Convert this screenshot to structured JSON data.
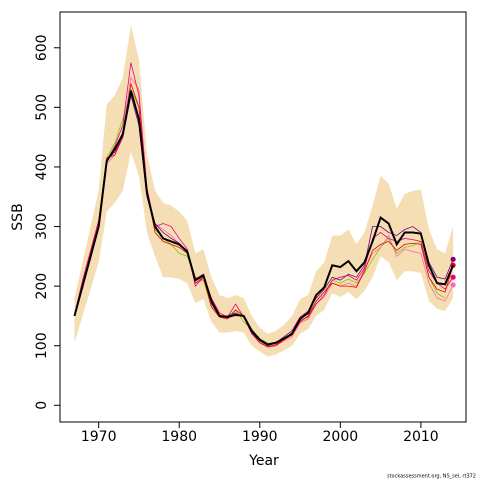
{
  "chart_data": {
    "type": "line",
    "x_label": "Year",
    "y_label": "SSB",
    "footnote": "stockassessment.org, NS_sel, rt372",
    "x": [
      1967,
      1968,
      1969,
      1970,
      1971,
      1972,
      1973,
      1974,
      1975,
      1976,
      1977,
      1978,
      1979,
      1980,
      1981,
      1982,
      1983,
      1984,
      1985,
      1986,
      1987,
      1988,
      1989,
      1990,
      1991,
      1992,
      1993,
      1994,
      1995,
      1996,
      1997,
      1998,
      1999,
      2000,
      2001,
      2002,
      2003,
      2004,
      2005,
      2006,
      2007,
      2008,
      2009,
      2010,
      2011,
      2012,
      2013,
      2014
    ],
    "xlim": [
      1965.2,
      2015.6
    ],
    "xticks": [
      1970,
      1980,
      1990,
      2000,
      2010
    ],
    "ylim": [
      -28,
      660
    ],
    "yticks": [
      0,
      100,
      200,
      300,
      400,
      500,
      600
    ],
    "band": {
      "color": "#f5deb3",
      "upper": [
        180,
        240,
        300,
        360,
        505,
        520,
        550,
        638,
        580,
        420,
        360,
        340,
        335,
        325,
        310,
        255,
        262,
        215,
        185,
        180,
        185,
        180,
        150,
        130,
        120,
        125,
        135,
        150,
        178,
        185,
        225,
        240,
        285,
        285,
        295,
        270,
        290,
        335,
        385,
        372,
        330,
        355,
        360,
        362,
        295,
        262,
        255,
        300
      ],
      "lower": [
        105,
        150,
        195,
        240,
        325,
        340,
        360,
        425,
        385,
        290,
        250,
        215,
        215,
        212,
        205,
        172,
        178,
        140,
        122,
        122,
        125,
        122,
        100,
        90,
        82,
        85,
        92,
        100,
        120,
        128,
        150,
        160,
        188,
        182,
        190,
        178,
        192,
        215,
        250,
        240,
        210,
        225,
        225,
        222,
        175,
        162,
        158,
        180
      ]
    },
    "series": [
      {
        "color": "#7ccd00",
        "values": [
          150,
          205,
          258,
          310,
          415,
          440,
          480,
          530,
          500,
          360,
          295,
          280,
          270,
          255,
          250,
          215,
          210,
          165,
          150,
          148,
          160,
          140,
          128,
          112,
          104,
          106,
          112,
          120,
          138,
          145,
          175,
          190,
          210,
          205,
          212,
          205,
          222,
          245,
          265,
          280,
          255,
          265,
          268,
          275,
          215,
          188,
          180,
          null
        ]
      },
      {
        "color": "#ff69b4",
        "values": [
          150,
          200,
          250,
          300,
          405,
          420,
          460,
          550,
          530,
          350,
          305,
          295,
          285,
          270,
          260,
          205,
          210,
          175,
          150,
          150,
          150,
          150,
          125,
          108,
          100,
          100,
          108,
          115,
          138,
          145,
          170,
          182,
          205,
          200,
          205,
          200,
          228,
          255,
          265,
          285,
          250,
          262,
          258,
          255,
          205,
          180,
          175,
          202
        ]
      },
      {
        "color": "#e6007e",
        "values": [
          152,
          210,
          260,
          310,
          410,
          435,
          470,
          575,
          520,
          365,
          300,
          305,
          300,
          280,
          262,
          200,
          215,
          180,
          155,
          148,
          170,
          148,
          120,
          105,
          98,
          102,
          110,
          122,
          142,
          148,
          170,
          185,
          210,
          215,
          218,
          210,
          230,
          280,
          290,
          280,
          275,
          280,
          278,
          275,
          225,
          205,
          195,
          215
        ]
      },
      {
        "color": "#ee0000",
        "values": [
          150,
          205,
          255,
          305,
          415,
          420,
          450,
          540,
          500,
          360,
          290,
          275,
          270,
          265,
          255,
          205,
          215,
          165,
          148,
          145,
          160,
          150,
          122,
          105,
          98,
          100,
          110,
          118,
          140,
          150,
          175,
          190,
          205,
          200,
          200,
          198,
          225,
          260,
          270,
          275,
          260,
          270,
          272,
          270,
          215,
          195,
          190,
          235
        ]
      },
      {
        "color": "#800080",
        "values": [
          150,
          198,
          248,
          298,
          412,
          425,
          450,
          520,
          470,
          350,
          305,
          290,
          280,
          272,
          255,
          212,
          220,
          170,
          150,
          150,
          155,
          148,
          122,
          108,
          100,
          105,
          115,
          125,
          148,
          158,
          180,
          195,
          215,
          210,
          220,
          215,
          235,
          300,
          300,
          290,
          285,
          295,
          300,
          290,
          240,
          215,
          212,
          245
        ]
      },
      {
        "color": "#000000",
        "width": 2,
        "values": [
          150,
          200,
          250,
          300,
          410,
          430,
          455,
          528,
          480,
          355,
          300,
          280,
          275,
          270,
          258,
          210,
          218,
          175,
          150,
          148,
          152,
          150,
          125,
          110,
          102,
          105,
          112,
          120,
          145,
          155,
          185,
          198,
          235,
          232,
          242,
          225,
          240,
          275,
          315,
          305,
          270,
          290,
          290,
          288,
          235,
          205,
          203,
          235
        ]
      }
    ]
  }
}
